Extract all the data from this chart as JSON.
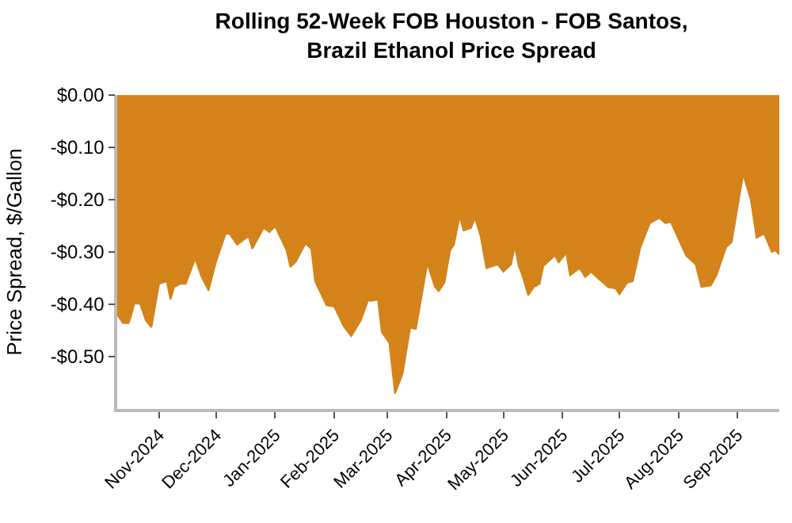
{
  "chart_data": {
    "type": "area",
    "title": "Rolling 52-Week FOB Houston - FOB Santos,\nBrazil Ethanol Price Spread",
    "ylabel": "Price Spread, $/Gallon",
    "x": [
      "2024-10-10",
      "2024-10-13",
      "2024-10-16",
      "2024-10-17",
      "2024-10-19",
      "2024-10-22",
      "2024-10-25",
      "2024-10-28",
      "2024-11-01",
      "2024-11-05",
      "2024-11-07",
      "2024-11-09",
      "2024-11-12",
      "2024-11-15",
      "2024-11-20",
      "2024-11-23",
      "2024-11-27",
      "2024-12-01",
      "2024-12-06",
      "2024-12-08",
      "2024-12-12",
      "2024-12-18",
      "2024-12-20",
      "2024-12-26",
      "2024-12-29",
      "2025-01-01",
      "2025-01-07",
      "2025-01-09",
      "2025-01-12",
      "2025-01-15",
      "2025-01-17",
      "2025-01-20",
      "2025-01-22",
      "2025-01-28",
      "2025-02-01",
      "2025-02-06",
      "2025-02-10",
      "2025-02-15",
      "2025-02-19",
      "2025-02-20",
      "2025-02-24",
      "2025-02-26",
      "2025-03-02",
      "2025-03-05",
      "2025-03-09",
      "2025-03-13",
      "2025-03-16",
      "2025-03-22",
      "2025-03-26",
      "2025-03-28",
      "2025-03-31",
      "2025-04-03",
      "2025-04-05",
      "2025-04-08",
      "2025-04-10",
      "2025-04-14",
      "2025-04-16",
      "2025-04-19",
      "2025-04-22",
      "2025-04-28",
      "2025-05-01",
      "2025-05-05",
      "2025-05-07",
      "2025-05-09",
      "2025-05-11",
      "2025-05-14",
      "2025-05-17",
      "2025-05-20",
      "2025-05-22",
      "2025-05-28",
      "2025-05-30",
      "2025-06-03",
      "2025-06-05",
      "2025-06-10",
      "2025-06-13",
      "2025-06-16",
      "2025-06-20",
      "2025-06-25",
      "2025-06-29",
      "2025-07-01",
      "2025-07-05",
      "2025-07-08",
      "2025-07-12",
      "2025-07-17",
      "2025-07-22",
      "2025-07-25",
      "2025-07-28",
      "2025-08-03",
      "2025-08-05",
      "2025-08-10",
      "2025-08-13",
      "2025-08-18",
      "2025-08-21",
      "2025-08-26",
      "2025-08-29",
      "2025-09-01",
      "2025-09-04",
      "2025-09-08",
      "2025-09-11",
      "2025-09-15",
      "2025-09-19",
      "2025-09-21",
      "2025-09-23"
    ],
    "series": [
      {
        "color": "#d4831a",
        "values": [
          -0.42,
          -0.436,
          -0.436,
          -0.426,
          -0.399,
          -0.399,
          -0.431,
          -0.444,
          -0.361,
          -0.356,
          -0.391,
          -0.367,
          -0.361,
          -0.361,
          -0.313,
          -0.345,
          -0.374,
          -0.318,
          -0.265,
          -0.265,
          -0.286,
          -0.27,
          -0.294,
          -0.254,
          -0.262,
          -0.251,
          -0.297,
          -0.329,
          -0.318,
          -0.297,
          -0.284,
          -0.294,
          -0.356,
          -0.402,
          -0.404,
          -0.442,
          -0.461,
          -0.431,
          -0.391,
          -0.394,
          -0.391,
          -0.453,
          -0.474,
          -0.571,
          -0.533,
          -0.445,
          -0.447,
          -0.322,
          -0.367,
          -0.375,
          -0.359,
          -0.297,
          -0.286,
          -0.232,
          -0.259,
          -0.254,
          -0.235,
          -0.27,
          -0.331,
          -0.324,
          -0.338,
          -0.324,
          -0.289,
          -0.327,
          -0.345,
          -0.383,
          -0.367,
          -0.361,
          -0.327,
          -0.307,
          -0.32,
          -0.302,
          -0.345,
          -0.331,
          -0.348,
          -0.338,
          -0.351,
          -0.367,
          -0.37,
          -0.381,
          -0.359,
          -0.356,
          -0.291,
          -0.245,
          -0.235,
          -0.245,
          -0.243,
          -0.291,
          -0.307,
          -0.324,
          -0.367,
          -0.364,
          -0.345,
          -0.291,
          -0.281,
          -0.216,
          -0.152,
          -0.2,
          -0.273,
          -0.265,
          -0.3,
          -0.297,
          -0.305
        ]
      }
    ],
    "xlim": [
      "2024-10-10",
      "2025-09-23"
    ],
    "xticks": [
      {
        "value": "2024-11-01",
        "label": "Nov-2024"
      },
      {
        "value": "2024-12-01",
        "label": "Dec-2024"
      },
      {
        "value": "2025-01-01",
        "label": "Jan-2025"
      },
      {
        "value": "2025-02-01",
        "label": "Feb-2025"
      },
      {
        "value": "2025-03-01",
        "label": "Mar-2025"
      },
      {
        "value": "2025-04-01",
        "label": "Apr-2025"
      },
      {
        "value": "2025-05-01",
        "label": "May-2025"
      },
      {
        "value": "2025-06-01",
        "label": "Jun-2025"
      },
      {
        "value": "2025-07-01",
        "label": "Jul-2025"
      },
      {
        "value": "2025-08-01",
        "label": "Aug-2025"
      },
      {
        "value": "2025-09-01",
        "label": "Sep-2025"
      }
    ],
    "ylim": [
      -0.6,
      0
    ],
    "yticks": [
      {
        "value": 0,
        "label": "$0.00"
      },
      {
        "value": -0.1,
        "label": "-$0.10"
      },
      {
        "value": -0.2,
        "label": "-$0.20"
      },
      {
        "value": -0.3,
        "label": "-$0.30"
      },
      {
        "value": -0.4,
        "label": "-$0.40"
      },
      {
        "value": -0.5,
        "label": "-$0.50"
      }
    ],
    "grid": false
  }
}
